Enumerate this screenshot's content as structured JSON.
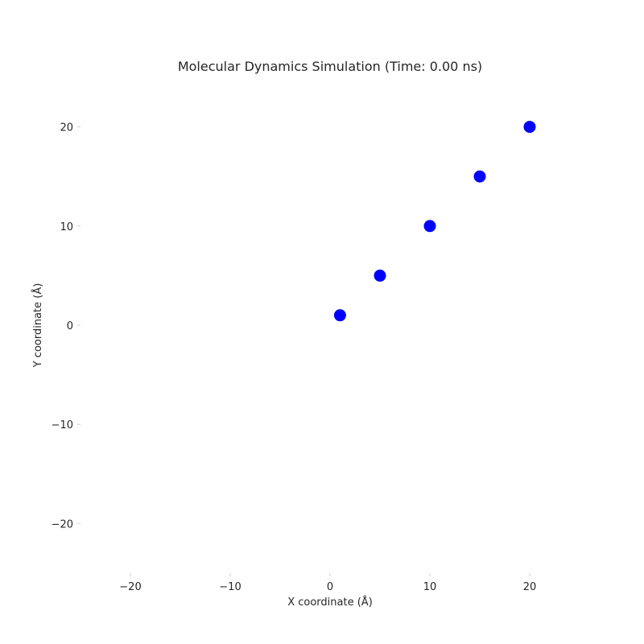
{
  "chart_data": {
    "type": "scatter",
    "title": "Molecular Dynamics Simulation (Time: 0.00 ns)",
    "xlabel": "X coordinate (Å)",
    "ylabel": "Y coordinate (Å)",
    "xlim": [
      -25,
      25
    ],
    "ylim": [
      -25,
      25
    ],
    "xticks": [
      -20,
      -10,
      0,
      10,
      20
    ],
    "yticks": [
      -20,
      -10,
      0,
      10,
      20
    ],
    "xtick_labels": [
      "−20",
      "−10",
      "0",
      "10",
      "20"
    ],
    "ytick_labels": [
      "−20",
      "−10",
      "0",
      "10",
      "20"
    ],
    "grid": false,
    "series": [
      {
        "color": "#0000ff",
        "x": [
          1,
          5,
          10,
          15,
          20
        ],
        "y": [
          1,
          5,
          10,
          15,
          20
        ]
      }
    ]
  }
}
